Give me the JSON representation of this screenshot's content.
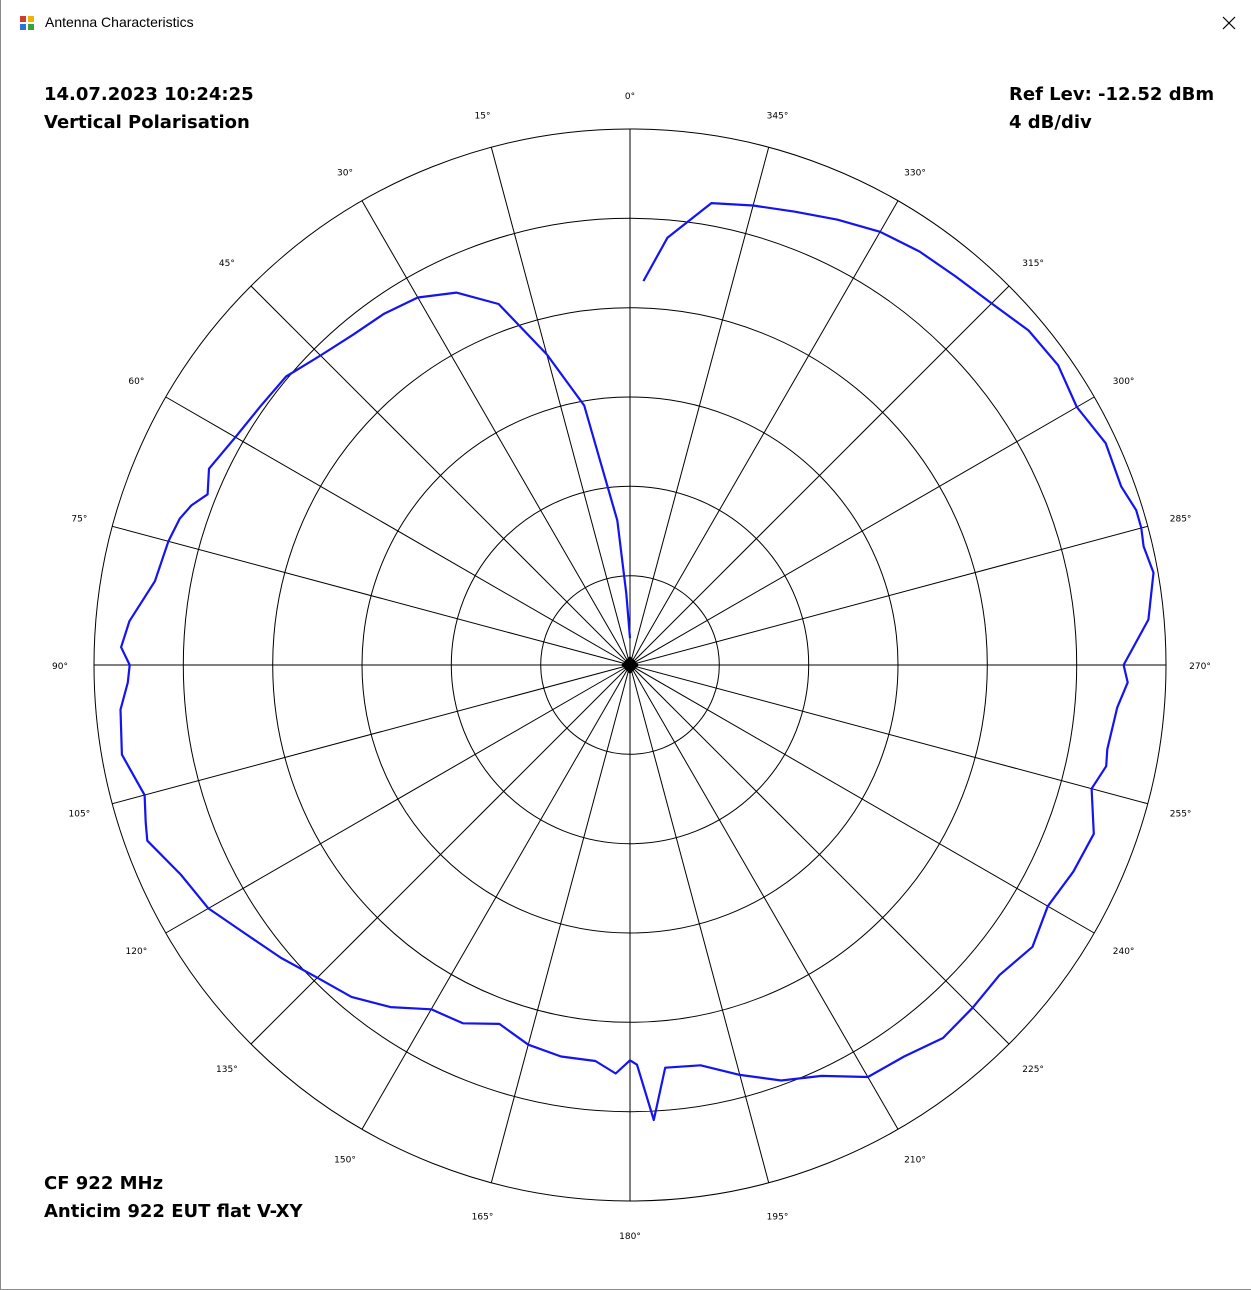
{
  "window": {
    "title": "Antenna Characteristics",
    "icon": "app-icon",
    "close_icon": "close-icon"
  },
  "info": {
    "datetime": "14.07.2023 10:24:25",
    "polarisation": "Vertical Polarisation",
    "ref_level": "Ref Lev: -12.52 dBm",
    "scale": "4 dB/div",
    "center_freq": "CF 922 MHz",
    "measurement": "Anticim 922 EUT flat V-XY"
  },
  "colors": {
    "trace": "#1414f0",
    "grid": "#000000",
    "background": "#ffffff"
  },
  "chart_data": {
    "type": "polar",
    "title": "",
    "angle_direction": "counterclockwise",
    "zero_at": "top",
    "angle_ticks": [
      0,
      15,
      30,
      45,
      60,
      75,
      90,
      105,
      120,
      135,
      150,
      165,
      180,
      195,
      210,
      225,
      240,
      255,
      270,
      285,
      300,
      315,
      330,
      345
    ],
    "angle_tick_labels": [
      "0°",
      "15°",
      "30°",
      "45°",
      "60°",
      "75°",
      "90°",
      "105°",
      "120°",
      "135°",
      "150°",
      "165°",
      "180°",
      "195°",
      "210°",
      "225°",
      "240°",
      "255°",
      "270°",
      "285°",
      "300°",
      "315°",
      "330°",
      "345°"
    ],
    "radial_unit": "dB",
    "radial_divisions": 6,
    "radial_step_db": 4,
    "radial_range_db": [
      -24,
      0
    ],
    "reference_level_dbm": -12.52,
    "grid": true,
    "series": [
      {
        "angle_deg": [
          0,
          3,
          5,
          10,
          15,
          20,
          25,
          30,
          35,
          40,
          45,
          50,
          55,
          60,
          65,
          68,
          70,
          72,
          75,
          80,
          85,
          88,
          90,
          92,
          95,
          100,
          105,
          108,
          110,
          115,
          120,
          125,
          130,
          135,
          140,
          145,
          150,
          155,
          160,
          165,
          170,
          175,
          178,
          180,
          181,
          183,
          185,
          190,
          195,
          200,
          205,
          210,
          215,
          220,
          225,
          230,
          235,
          240,
          245,
          250,
          255,
          258,
          260,
          265,
          268,
          270,
          275,
          280,
          283,
          285,
          287,
          290,
          295,
          300,
          305,
          310,
          315,
          320,
          325,
          330,
          335,
          340,
          345,
          350,
          355,
          358
        ],
        "level_db": [
          -22.8,
          -20.8,
          -17.5,
          -12.2,
          -9.6,
          -6.8,
          -5.6,
          -5.0,
          -4.8,
          -4.7,
          -4.4,
          -3.9,
          -3.8,
          -3.6,
          -3.2,
          -3.6,
          -3.1,
          -2.8,
          -2.6,
          -2.4,
          -1.5,
          -1.2,
          -1.6,
          -1.5,
          -1.1,
          -0.9,
          -1.5,
          -1.2,
          -1.0,
          -1.8,
          -2.2,
          -3.0,
          -3.6,
          -4.2,
          -4.6,
          -5.3,
          -6.2,
          -6.3,
          -6.9,
          -6.4,
          -6.2,
          -6.2,
          -5.7,
          -6.3,
          -6.1,
          -3.6,
          -5.9,
          -5.8,
          -5.0,
          -4.2,
          -3.7,
          -2.7,
          -2.6,
          -2.2,
          -2.3,
          -2.4,
          -2.0,
          -2.4,
          -2.1,
          -1.9,
          -2.6,
          -2.2,
          -2.3,
          -2.1,
          -1.7,
          -1.9,
          -0.7,
          -0.2,
          -0.4,
          -0.3,
          -0.3,
          -0.6,
          -0.5,
          -0.9,
          -0.6,
          -0.7,
          -1.1,
          -1.3,
          -1.4,
          -1.6,
          -2.0,
          -2.4,
          -2.7,
          -3.0,
          -4.8,
          -6.8
        ]
      }
    ]
  }
}
